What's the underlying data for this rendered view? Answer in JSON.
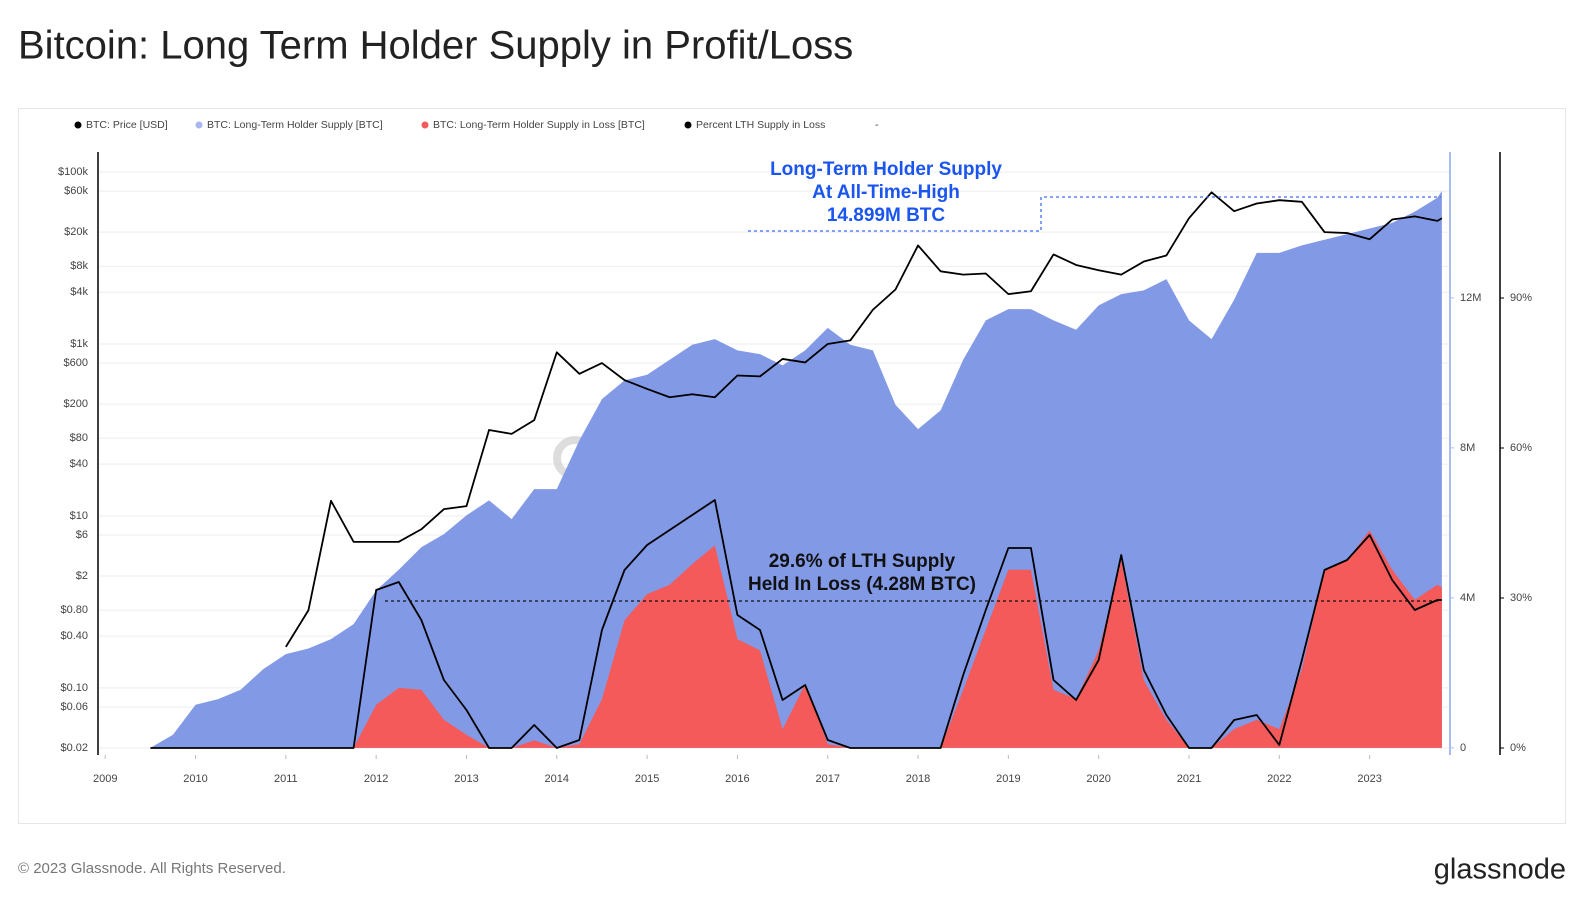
{
  "chart_data": {
    "type": "line",
    "title": "Bitcoin: Long Term Holder Supply in Profit/Loss",
    "x": [
      2009.5,
      2009.75,
      2010,
      2010.25,
      2010.5,
      2010.75,
      2011,
      2011.25,
      2011.5,
      2011.75,
      2012,
      2012.25,
      2012.5,
      2012.75,
      2013,
      2013.25,
      2013.5,
      2013.75,
      2014,
      2014.25,
      2014.5,
      2014.75,
      2015,
      2015.25,
      2015.5,
      2015.75,
      2016,
      2016.25,
      2016.5,
      2016.75,
      2017,
      2017.25,
      2017.5,
      2017.75,
      2018,
      2018.25,
      2018.5,
      2018.75,
      2019,
      2019.25,
      2019.5,
      2019.75,
      2020,
      2020.25,
      2020.5,
      2020.75,
      2021,
      2021.25,
      2021.5,
      2021.75,
      2022,
      2022.25,
      2022.5,
      2022.75,
      2023,
      2023.25,
      2023.5,
      2023.75,
      2023.8
    ],
    "xlim": [
      2008.92,
      2023.89
    ],
    "xticks": [
      2009,
      2010,
      2011,
      2012,
      2013,
      2014,
      2015,
      2016,
      2017,
      2018,
      2019,
      2020,
      2021,
      2022,
      2023
    ],
    "yscale": "log",
    "ylim": [
      0.0166,
      170800
    ],
    "yticks": [
      {
        "value": 0.02,
        "label": "$0.02"
      },
      {
        "value": 0.06,
        "label": "$0.06"
      },
      {
        "value": 0.1,
        "label": "$0.10"
      },
      {
        "value": 0.4,
        "label": "$0.40"
      },
      {
        "value": 0.8,
        "label": "$0.80"
      },
      {
        "value": 2,
        "label": "$2"
      },
      {
        "value": 6,
        "label": "$6"
      },
      {
        "value": 10,
        "label": "$10"
      },
      {
        "value": 40,
        "label": "$40"
      },
      {
        "value": 80,
        "label": "$80"
      },
      {
        "value": 200,
        "label": "$200"
      },
      {
        "value": 600,
        "label": "$600"
      },
      {
        "value": 1000,
        "label": "$1k"
      },
      {
        "value": 4000,
        "label": "$4k"
      },
      {
        "value": 8000,
        "label": "$8k"
      },
      {
        "value": 20000,
        "label": "$20k"
      },
      {
        "value": 60000,
        "label": "$60k"
      },
      {
        "value": 100000,
        "label": "$100k"
      }
    ],
    "y2lim": [
      -0.19,
      15.89
    ],
    "y2ticks": [
      0,
      {
        "value": 4,
        "label": "4M"
      },
      {
        "value": 8,
        "label": "8M"
      },
      {
        "value": 12,
        "label": "12M"
      }
    ],
    "y3lim": [
      -1.4,
      119.2
    ],
    "y3ticks": [
      {
        "value": 0,
        "label": "0%"
      },
      {
        "value": 30,
        "label": "30%"
      },
      {
        "value": 60,
        "label": "60%"
      },
      {
        "value": 90,
        "label": "90%"
      }
    ],
    "grid": true,
    "legend_position": "top",
    "legend_trailing": "-",
    "series": [
      {
        "name": "BTC: Price [USD]",
        "color": "#000000",
        "style": "line",
        "axis": "y",
        "values": [
          null,
          null,
          null,
          null,
          null,
          null,
          0.3,
          0.8,
          15,
          5,
          5,
          5,
          7,
          12,
          13,
          100,
          90,
          130,
          800,
          450,
          600,
          380,
          300,
          240,
          260,
          240,
          430,
          420,
          670,
          610,
          1000,
          1100,
          2500,
          4300,
          14000,
          7000,
          6400,
          6600,
          3800,
          4100,
          11000,
          8300,
          7200,
          6400,
          9100,
          10700,
          29000,
          58000,
          35000,
          43000,
          47000,
          45000,
          20000,
          19500,
          16500,
          28000,
          30500,
          27000,
          29000
        ]
      },
      {
        "name": "BTC: Long-Term Holder Supply [BTC]",
        "color": "#8299e6",
        "style": "area",
        "axis": "y2",
        "values": [
          0,
          0.35,
          1.15,
          1.3,
          1.55,
          2.1,
          2.5,
          2.65,
          2.9,
          3.3,
          4.2,
          4.75,
          5.35,
          5.7,
          6.2,
          6.6,
          6.1,
          6.9,
          6.9,
          8.2,
          9.3,
          9.8,
          9.95,
          10.35,
          10.75,
          10.9,
          10.6,
          10.5,
          10.2,
          10.6,
          11.2,
          10.75,
          10.6,
          9.15,
          8.5,
          9.0,
          10.35,
          11.4,
          11.7,
          11.7,
          11.4,
          11.15,
          11.8,
          12.1,
          12.2,
          12.5,
          11.4,
          10.9,
          11.95,
          13.2,
          13.2,
          13.4,
          13.55,
          13.7,
          13.85,
          14.0,
          14.3,
          14.67,
          14.85
        ]
      },
      {
        "name": "BTC: Long-Term Holder Supply in Loss [BTC]",
        "color": "#f55a5a",
        "style": "area",
        "axis": "y2",
        "values": [
          0,
          0,
          0,
          0,
          0,
          0,
          0,
          0,
          0,
          0,
          1.15,
          1.6,
          1.55,
          0.75,
          0.35,
          0,
          0,
          0.2,
          0,
          0.1,
          1.3,
          3.4,
          4.1,
          4.35,
          4.9,
          5.4,
          2.9,
          2.6,
          0.5,
          1.7,
          0.1,
          0,
          0,
          0,
          0,
          0,
          1.55,
          3.15,
          4.75,
          4.75,
          1.55,
          1.3,
          2.6,
          5.0,
          1.8,
          0.75,
          0,
          0,
          0.5,
          0.75,
          0.5,
          2.1,
          4.75,
          5.0,
          5.8,
          4.75,
          3.95,
          4.35,
          4.28
        ]
      },
      {
        "name": "Percent LTH Supply in Loss",
        "color": "#000000",
        "style": "line",
        "axis": "y3",
        "values": [
          0,
          0,
          0,
          0,
          0,
          0,
          0,
          0,
          0,
          0,
          31.6,
          33.2,
          25.6,
          13.6,
          7.6,
          0,
          0,
          4.6,
          0,
          1.6,
          23.6,
          35.6,
          40.6,
          43.6,
          46.6,
          49.6,
          26.6,
          23.6,
          9.6,
          12.6,
          1.6,
          0,
          0,
          0,
          0,
          0,
          14.6,
          27.6,
          40,
          40,
          13.6,
          9.6,
          17.6,
          38.6,
          15.6,
          6.6,
          0,
          0,
          5.6,
          6.6,
          0.6,
          17.6,
          35.6,
          37.6,
          42.6,
          33.6,
          27.6,
          29.6,
          29.6
        ]
      }
    ],
    "annotations": [
      {
        "lines": [
          "Long-Term Holder Supply",
          "At All-Time-High",
          "14.899M BTC"
        ],
        "color": "#1a55f0"
      },
      {
        "lines": [
          "29.6% of LTH Supply",
          "Held In Loss (4.28M BTC)"
        ],
        "color": "#111111"
      }
    ]
  },
  "footer": {
    "copyright": "© 2023 Glassnode. All Rights Reserved.",
    "brand": "glassnode"
  }
}
